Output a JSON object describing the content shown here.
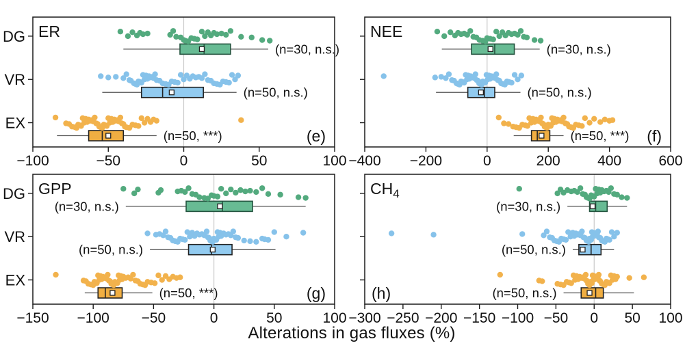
{
  "figure": {
    "x_axis_title": "Alterations in gas fluxes (%)",
    "background": "#ffffff",
    "frame_color": "#1a1a1a",
    "grid_color": "#c9c9c9",
    "whisker_color": "#555555",
    "text_color": "#111111",
    "groups": [
      "DG",
      "VR",
      "EX"
    ],
    "colors": {
      "DG": {
        "dot": "#53aa7e",
        "fill": "#68bb94",
        "edge": "#24543f"
      },
      "VR": {
        "dot": "#86c2ea",
        "fill": "#92cbf0",
        "edge": "#222222"
      },
      "EX": {
        "dot": "#f2b24c",
        "fill": "#f0ae42",
        "edge": "#222222"
      }
    },
    "mean_marker": {
      "shape": "square",
      "fill": "#ffffff",
      "edge": "#222222"
    }
  },
  "chart_data": [
    {
      "id": "e",
      "type": "box",
      "title": "ER",
      "title_sub": "",
      "letter": "(e)",
      "letter_side": "right",
      "show_group_labels": true,
      "xlim": [
        -100,
        100
      ],
      "xticks": [
        -100,
        -50,
        0,
        50,
        100
      ],
      "gridline_x": 0,
      "groups": [
        {
          "name": "DG",
          "n": 30,
          "annotation": "(n=30, n.s.)",
          "annotation_side": "right",
          "box": {
            "q1": -2.5,
            "median": 13.5,
            "q3": 31,
            "mean": 12,
            "whisker_low": -40,
            "whisker_high": 56
          },
          "points": [
            -42,
            -37,
            -34,
            -31,
            -29,
            -27,
            -24,
            -9,
            -7,
            -5,
            -2,
            0,
            1,
            3,
            5,
            7,
            9,
            12,
            14,
            16,
            18,
            20,
            22,
            25,
            28,
            31,
            38,
            45,
            52,
            57
          ]
        },
        {
          "name": "VR",
          "n": 50,
          "annotation": "(n=50, n.s.)",
          "annotation_side": "right",
          "box": {
            "q1": -28,
            "median": -14,
            "q3": 13,
            "mean": -8,
            "whisker_low": -54,
            "whisker_high": 35
          },
          "points": [
            -55,
            -50,
            -45,
            -40,
            -38,
            -36,
            -35,
            -33,
            -32,
            -31,
            -30,
            -29,
            -28,
            -27,
            -26,
            -25,
            -24,
            -23,
            -22,
            -21,
            -20,
            -19,
            -18,
            -16,
            -14,
            -12,
            -10,
            -8,
            -6,
            -4,
            -2,
            0,
            2,
            4,
            6,
            8,
            10,
            12,
            14,
            16,
            18,
            20,
            22,
            24,
            26,
            28,
            30,
            32,
            34,
            36
          ]
        },
        {
          "name": "EX",
          "n": 50,
          "annotation": "(n=50, ***)",
          "annotation_side": "right",
          "box": {
            "q1": -63,
            "median": -54,
            "q3": -40,
            "mean": -50,
            "whisker_low": -84,
            "whisker_high": -18
          },
          "points": [
            -85,
            -78,
            -76,
            -74,
            -72,
            -71,
            -70,
            -69,
            -68,
            -67,
            -66,
            -65,
            -64,
            -63,
            -62,
            -61,
            -60,
            -59,
            -58,
            -57,
            -56,
            -55,
            -54,
            -53,
            -52,
            -51,
            -50,
            -49,
            -48,
            -47,
            -46,
            -45,
            -44,
            -43,
            -42,
            -41,
            -40,
            -39,
            -38,
            -36,
            -34,
            -32,
            -30,
            -28,
            -26,
            -24,
            -22,
            -20,
            -18,
            38
          ]
        }
      ]
    },
    {
      "id": "f",
      "type": "box",
      "title": "NEE",
      "title_sub": "",
      "letter": "(f)",
      "letter_side": "right",
      "show_group_labels": false,
      "xlim": [
        -400,
        600
      ],
      "xticks": [
        -400,
        -200,
        0,
        200,
        400,
        600
      ],
      "gridline_x": 0,
      "groups": [
        {
          "name": "DG",
          "n": 30,
          "annotation": "(n=30, n.s.)",
          "annotation_side": "right",
          "box": {
            "q1": -51,
            "median": 25,
            "q3": 89,
            "mean": 11,
            "whisker_low": -148,
            "whisker_high": 172
          },
          "points": [
            -163,
            -140,
            -120,
            -105,
            -95,
            -85,
            -75,
            -65,
            -55,
            -45,
            -35,
            -25,
            -15,
            -5,
            0,
            10,
            20,
            30,
            40,
            50,
            60,
            70,
            80,
            90,
            100,
            110,
            120,
            130,
            155,
            175
          ]
        },
        {
          "name": "VR",
          "n": 50,
          "annotation": "(n=50, n.s.)",
          "annotation_side": "right",
          "box": {
            "q1": -63,
            "median": -9,
            "q3": 25,
            "mean": -20,
            "whisker_low": -167,
            "whisker_high": 109
          },
          "points": [
            -338,
            -170,
            -150,
            -135,
            -125,
            -115,
            -108,
            -100,
            -95,
            -90,
            -85,
            -80,
            -75,
            -70,
            -66,
            -62,
            -58,
            -54,
            -50,
            -46,
            -42,
            -38,
            -34,
            -30,
            -26,
            -22,
            -18,
            -14,
            -10,
            -6,
            -2,
            2,
            6,
            10,
            14,
            18,
            22,
            26,
            30,
            35,
            40,
            46,
            52,
            58,
            65,
            72,
            80,
            90,
            100,
            112
          ]
        },
        {
          "name": "EX",
          "n": 50,
          "annotation": "(n=50, ***)",
          "annotation_side": "right",
          "box": {
            "q1": 145,
            "median": 164,
            "q3": 205,
            "mean": 178,
            "whisker_low": 87,
            "whisker_high": 250
          },
          "points": [
            38,
            55,
            70,
            85,
            95,
            105,
            115,
            125,
            132,
            138,
            144,
            150,
            155,
            160,
            164,
            168,
            172,
            176,
            180,
            184,
            188,
            192,
            196,
            200,
            204,
            208,
            212,
            216,
            220,
            225,
            230,
            235,
            240,
            245,
            250,
            256,
            262,
            268,
            275,
            282,
            290,
            300,
            310,
            320,
            335,
            350,
            370,
            385,
            400,
            410
          ]
        }
      ]
    },
    {
      "id": "g",
      "type": "box",
      "title": "GPP",
      "title_sub": "",
      "letter": "(g)",
      "letter_side": "right",
      "show_group_labels": true,
      "xlim": [
        -150,
        100
      ],
      "xticks": [
        -150,
        -100,
        -50,
        0,
        50,
        100
      ],
      "gridline_x": 0,
      "groups": [
        {
          "name": "DG",
          "n": 30,
          "annotation": "(n=30, n.s.)",
          "annotation_side": "left",
          "box": {
            "q1": -23,
            "median": 7,
            "q3": 32,
            "mean": 5,
            "whisker_low": -73,
            "whisker_high": 76
          },
          "points": [
            -75,
            -66,
            -63,
            -46,
            -44,
            -30,
            -27,
            -24,
            -21,
            -18,
            -15,
            -12,
            -8,
            -5,
            -2,
            0,
            3,
            6,
            10,
            14,
            18,
            22,
            26,
            30,
            35,
            40,
            45,
            55,
            70,
            76
          ]
        },
        {
          "name": "VR",
          "n": 50,
          "annotation": "(n=50, n.s.)",
          "annotation_side": "left",
          "box": {
            "q1": -21,
            "median": -2,
            "q3": 15,
            "mean": -1,
            "whisker_low": -53,
            "whisker_high": 51
          },
          "points": [
            -55,
            -48,
            -45,
            -42,
            -40,
            -38,
            -36,
            -34,
            -32,
            -30,
            -28,
            -26,
            -24,
            -22,
            -20,
            -18,
            -16,
            -14,
            -12,
            -10,
            -8,
            -6,
            -5,
            -4,
            -3,
            -2,
            -1,
            0,
            1,
            2,
            3,
            4,
            5,
            6,
            8,
            10,
            12,
            14,
            16,
            18,
            20,
            25,
            30,
            35,
            40,
            42,
            45,
            50,
            60,
            74
          ]
        },
        {
          "name": "EX",
          "n": 50,
          "annotation": "(n=50, ***)",
          "annotation_side": "right",
          "box": {
            "q1": -96,
            "median": -90,
            "q3": -76,
            "mean": -84,
            "whisker_low": -107,
            "whisker_high": -51
          },
          "points": [
            -131,
            -108,
            -106,
            -104,
            -102,
            -100,
            -99,
            -98,
            -97,
            -96,
            -95,
            -94,
            -93,
            -92,
            -91,
            -90,
            -89,
            -88,
            -87,
            -86,
            -85,
            -84,
            -83,
            -82,
            -81,
            -80,
            -79,
            -78,
            -77,
            -76,
            -75,
            -73,
            -71,
            -69,
            -67,
            -65,
            -63,
            -61,
            -59,
            -57,
            -55,
            -52,
            -49,
            -46,
            -43,
            -40,
            -37,
            -34,
            -31,
            -28
          ]
        }
      ]
    },
    {
      "id": "h",
      "type": "box",
      "title": "CH",
      "title_sub": "4",
      "letter": "(h)",
      "letter_side": "left",
      "show_group_labels": false,
      "xlim": [
        -300,
        100
      ],
      "xticks": [
        -300,
        -250,
        -200,
        -150,
        -100,
        -50,
        0,
        50,
        100
      ],
      "gridline_x": 0,
      "groups": [
        {
          "name": "DG",
          "n": 30,
          "annotation": "(n=30, n.s.)",
          "annotation_side": "left",
          "box": {
            "q1": -6,
            "median": 2,
            "q3": 17,
            "mean": -2,
            "whisker_low": -35,
            "whisker_high": 43
          },
          "points": [
            -98,
            -48,
            -44,
            -40,
            -35,
            -30,
            -26,
            -22,
            -18,
            -15,
            -12,
            -10,
            -8,
            -6,
            -4,
            -2,
            0,
            2,
            4,
            6,
            8,
            10,
            13,
            16,
            19,
            22,
            26,
            30,
            36,
            43
          ]
        },
        {
          "name": "VR",
          "n": 50,
          "annotation": "(n=50, n.s.)",
          "annotation_side": "left",
          "box": {
            "q1": -20,
            "median": -4,
            "q3": 9,
            "mean": -15,
            "whisker_low": -28,
            "whisker_high": 26
          },
          "points": [
            -265,
            -210,
            -94,
            -66,
            -62,
            -58,
            -55,
            -52,
            -49,
            -46,
            -43,
            -40,
            -37,
            -34,
            -31,
            -28,
            -26,
            -24,
            -22,
            -20,
            -18,
            -16,
            -14,
            -12,
            -10,
            -8,
            -7,
            -6,
            -5,
            -4,
            -3,
            -2,
            -1,
            0,
            1,
            2,
            3,
            4,
            5,
            6,
            8,
            10,
            12,
            14,
            16,
            18,
            20,
            23,
            26,
            30
          ]
        },
        {
          "name": "EX",
          "n": 50,
          "annotation": "(n=50, n.s.)",
          "annotation_side": "left",
          "box": {
            "q1": -17,
            "median": 2,
            "q3": 12,
            "mean": -6,
            "whisker_low": -40,
            "whisker_high": 52
          },
          "points": [
            -123,
            -72,
            -68,
            -48,
            -44,
            -40,
            -36,
            -33,
            -30,
            -27,
            -25,
            -23,
            -21,
            -19,
            -17,
            -15,
            -13,
            -11,
            -10,
            -9,
            -8,
            -7,
            -6,
            -5,
            -4,
            -3,
            -2,
            -1,
            0,
            1,
            2,
            3,
            4,
            5,
            6,
            7,
            8,
            10,
            12,
            14,
            16,
            18,
            20,
            22,
            24,
            26,
            28,
            30,
            46,
            65
          ]
        }
      ]
    }
  ]
}
